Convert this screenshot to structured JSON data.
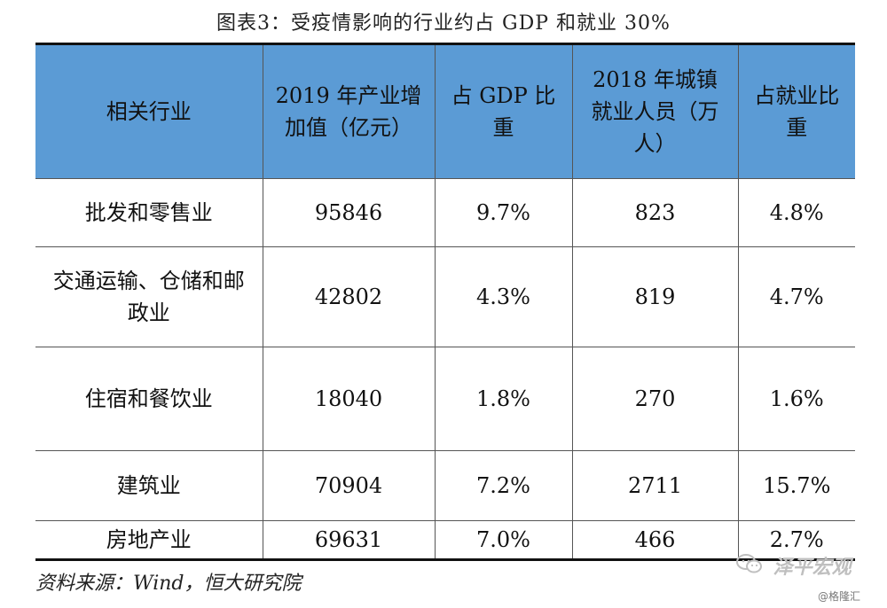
{
  "title": "图表3：受疫情影响的行业约占 GDP 和就业 30%",
  "table": {
    "headers": [
      "相关行业",
      "2019 年产业增加值（亿元）",
      "占 GDP 比重",
      "2018 年城镇就业人员（万人）",
      "占就业比重"
    ],
    "rows": [
      [
        "批发和零售业",
        "95846",
        "9.7%",
        "823",
        "4.8%"
      ],
      [
        "交通运输、仓储和邮政业",
        "42802",
        "4.3%",
        "819",
        "4.7%"
      ],
      [
        "住宿和餐饮业",
        "18040",
        "1.8%",
        "270",
        "1.6%"
      ],
      [
        "建筑业",
        "70904",
        "7.2%",
        "2711",
        "15.7%"
      ],
      [
        "房地产业",
        "69631",
        "7.0%",
        "466",
        "2.7%"
      ]
    ]
  },
  "source": "资料来源：Wind，恒大研究院",
  "watermark": {
    "icon": "wechat-icon",
    "brand": "泽平宏观",
    "credit": "@格隆汇"
  }
}
